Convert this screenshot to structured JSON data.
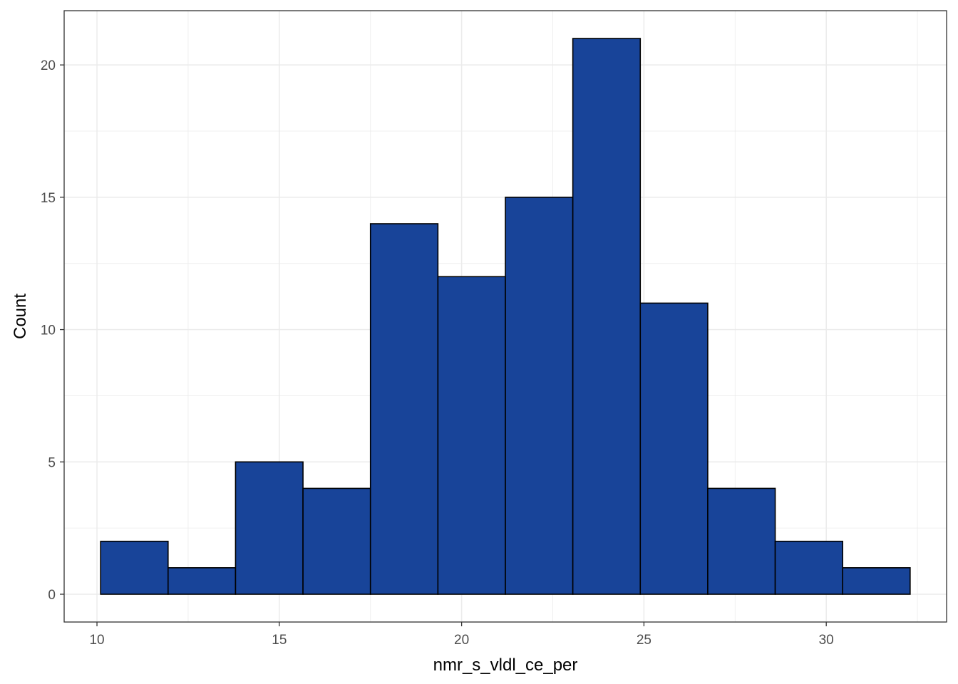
{
  "chart_data": {
    "type": "bar",
    "subtype": "histogram",
    "title": "",
    "xlabel": "nmr_s_vldl_ce_per",
    "ylabel": "Count",
    "bins": [
      {
        "x0": 10.1,
        "x1": 11.95,
        "count": 2
      },
      {
        "x0": 11.95,
        "x1": 13.8,
        "count": 1
      },
      {
        "x0": 13.8,
        "x1": 15.65,
        "count": 5
      },
      {
        "x0": 15.65,
        "x1": 17.5,
        "count": 4
      },
      {
        "x0": 17.5,
        "x1": 19.35,
        "count": 14
      },
      {
        "x0": 19.35,
        "x1": 21.2,
        "count": 12
      },
      {
        "x0": 21.2,
        "x1": 23.05,
        "count": 15
      },
      {
        "x0": 23.05,
        "x1": 24.9,
        "count": 21
      },
      {
        "x0": 24.9,
        "x1": 26.75,
        "count": 11
      },
      {
        "x0": 26.75,
        "x1": 28.6,
        "count": 4
      },
      {
        "x0": 28.6,
        "x1": 30.45,
        "count": 2
      },
      {
        "x0": 30.45,
        "x1": 32.3,
        "count": 1
      }
    ],
    "xlim": [
      9.1,
      33.3
    ],
    "ylim": [
      -1.05,
      22.05
    ],
    "x_ticks": [
      10,
      15,
      20,
      25,
      30
    ],
    "x_tick_labels": [
      "10",
      "15",
      "20",
      "25",
      "30"
    ],
    "y_ticks": [
      0,
      5,
      10,
      15,
      20
    ],
    "y_tick_labels": [
      "0",
      "5",
      "10",
      "15",
      "20"
    ],
    "grid": true,
    "colors": {
      "bar_fill": "#184499",
      "bar_outline": "#000000",
      "grid": "#ebebeb",
      "panel_border": "#333333",
      "background": "#ffffff"
    }
  }
}
